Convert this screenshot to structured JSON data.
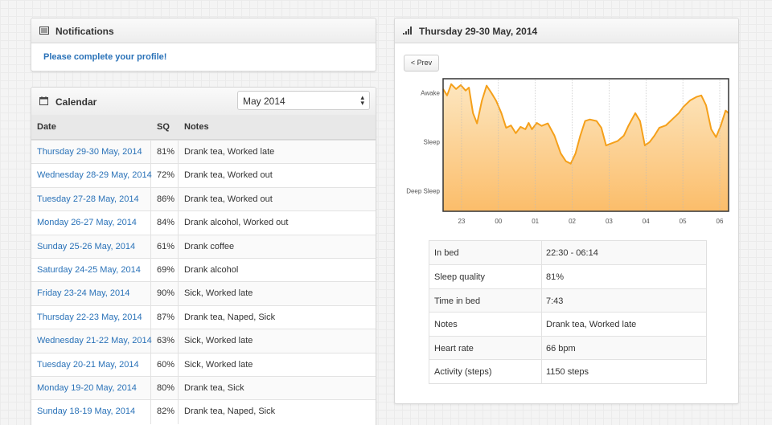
{
  "notifications": {
    "title": "Notifications",
    "message": "Please complete your profile!"
  },
  "calendar": {
    "title": "Calendar",
    "month_select": "May 2014",
    "columns": [
      "Date",
      "SQ",
      "Notes"
    ],
    "rows": [
      [
        "Thursday 29-30 May, 2014",
        "81%",
        "Drank tea, Worked late"
      ],
      [
        "Wednesday 28-29 May, 2014",
        "72%",
        "Drank tea, Worked out"
      ],
      [
        "Tuesday 27-28 May, 2014",
        "86%",
        "Drank tea, Worked out"
      ],
      [
        "Monday 26-27 May, 2014",
        "84%",
        "Drank alcohol, Worked out"
      ],
      [
        "Sunday 25-26 May, 2014",
        "61%",
        "Drank coffee"
      ],
      [
        "Saturday 24-25 May, 2014",
        "69%",
        "Drank alcohol"
      ],
      [
        "Friday 23-24 May, 2014",
        "90%",
        "Sick, Worked late"
      ],
      [
        "Thursday 22-23 May, 2014",
        "87%",
        "Drank tea, Naped, Sick"
      ],
      [
        "Wednesday 21-22 May, 2014",
        "63%",
        "Sick, Worked late"
      ],
      [
        "Tuesday 20-21 May, 2014",
        "60%",
        "Sick, Worked late"
      ],
      [
        "Monday 19-20 May, 2014",
        "80%",
        "Drank tea, Sick"
      ],
      [
        "Sunday 18-19 May, 2014",
        "82%",
        "Drank tea, Naped, Sick"
      ]
    ]
  },
  "detail": {
    "title": "Thursday 29-30 May, 2014",
    "prev_button": "< Prev",
    "sleep_chart": {
      "type": "area",
      "color": "#f5a01a",
      "x": [
        22.5,
        22.61,
        22.72,
        22.85,
        22.98,
        23.11,
        23.2,
        23.31,
        23.42,
        23.55,
        23.68,
        23.81,
        23.94,
        24.08,
        24.21,
        24.34,
        24.47,
        24.6,
        24.73,
        24.82,
        24.91,
        25.04,
        25.17,
        25.34,
        25.52,
        25.69,
        25.83,
        25.96,
        26.09,
        26.22,
        26.35,
        26.48,
        26.66,
        26.79,
        26.92,
        27.05,
        27.23,
        27.4,
        27.53,
        27.71,
        27.84,
        27.97,
        28.1,
        28.23,
        28.36,
        28.54,
        28.71,
        28.89,
        29.02,
        29.2,
        29.37,
        29.5,
        29.63,
        29.77,
        29.9,
        30.03,
        30.16,
        30.24
      ],
      "values": [
        2.09,
        1.96,
        2.19,
        2.09,
        2.17,
        2.06,
        2.12,
        1.6,
        1.39,
        1.85,
        2.16,
        2.01,
        1.85,
        1.6,
        1.3,
        1.35,
        1.19,
        1.32,
        1.27,
        1.4,
        1.27,
        1.4,
        1.34,
        1.39,
        1.14,
        0.78,
        0.62,
        0.57,
        0.78,
        1.14,
        1.44,
        1.47,
        1.44,
        1.3,
        0.94,
        0.98,
        1.03,
        1.14,
        1.35,
        1.6,
        1.44,
        0.94,
        1.01,
        1.14,
        1.3,
        1.35,
        1.47,
        1.6,
        1.73,
        1.86,
        1.93,
        1.96,
        1.76,
        1.27,
        1.11,
        1.35,
        1.65,
        1.6
      ],
      "xlim": [
        22.5,
        30.24
      ],
      "ylim": [
        -0.4,
        2.3
      ],
      "xticks": [
        23,
        {
          "value": 24,
          "label": "00"
        },
        {
          "value": 25,
          "label": "01"
        },
        {
          "value": 26,
          "label": "02"
        },
        {
          "value": 27,
          "label": "03"
        },
        {
          "value": 28,
          "label": "04"
        },
        {
          "value": 29,
          "label": "05"
        },
        {
          "value": 30,
          "label": "06"
        }
      ],
      "yticks": [
        {
          "value": 0,
          "label": "Deep Sleep"
        },
        {
          "value": 1,
          "label": "Sleep"
        },
        {
          "value": 2,
          "label": "Awake"
        }
      ],
      "grid": true
    },
    "stats": [
      [
        "In bed",
        "22:30 - 06:14"
      ],
      [
        "Sleep quality",
        "81%"
      ],
      [
        "Time in bed",
        "7:43"
      ],
      [
        "Notes",
        "Drank tea, Worked late"
      ],
      [
        "Heart rate",
        "66 bpm"
      ],
      [
        "Activity (steps)",
        "1150 steps"
      ]
    ]
  }
}
